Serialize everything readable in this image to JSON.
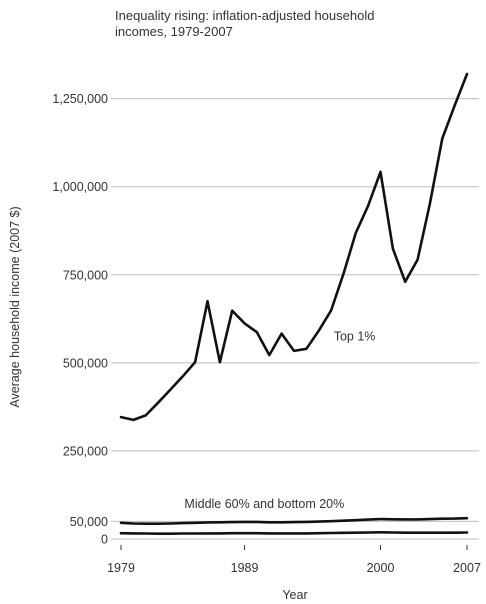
{
  "chart_data": {
    "type": "line",
    "title": "Inequality rising: inflation-adjusted household incomes, 1979-2007",
    "title_lines": [
      "Inequality rising: inflation-adjusted household",
      "incomes, 1979-2007"
    ],
    "xlabel": "Year",
    "ylabel": "Average household income (2007 $)",
    "xlim": [
      1979,
      2007
    ],
    "ylim": [
      0,
      1320000
    ],
    "grid": true,
    "x_ticks": [
      1979,
      1989,
      2000,
      2007
    ],
    "x_tick_labels": [
      "1979",
      "1989",
      "2000",
      "2007"
    ],
    "y_ticks": [
      0,
      50000,
      250000,
      500000,
      750000,
      1000000,
      1250000
    ],
    "y_tick_labels": [
      "0",
      "50,000",
      "250,000",
      "500,000",
      "750,000",
      "1,000,000",
      "1,250,000"
    ],
    "x": [
      1979,
      1980,
      1981,
      1982,
      1983,
      1984,
      1985,
      1986,
      1987,
      1988,
      1989,
      1990,
      1991,
      1992,
      1993,
      1994,
      1995,
      1996,
      1997,
      1998,
      1999,
      2000,
      2001,
      2002,
      2003,
      2004,
      2005,
      2006,
      2007
    ],
    "series": [
      {
        "name": "Top 1%",
        "values": [
          346000,
          338000,
          351000,
          387000,
          424000,
          462000,
          502000,
          675000,
          502000,
          648000,
          612000,
          587000,
          522000,
          583000,
          534000,
          540000,
          591000,
          649000,
          752000,
          869000,
          946000,
          1042000,
          824000,
          730000,
          793000,
          952000,
          1137000,
          1230000,
          1320000
        ]
      },
      {
        "name": "Middle 60%",
        "values": [
          46000,
          44000,
          43500,
          43500,
          44000,
          45000,
          46000,
          47000,
          47500,
          48000,
          48500,
          48500,
          47500,
          47500,
          48000,
          48500,
          49500,
          50500,
          52000,
          53500,
          55000,
          56500,
          56000,
          55500,
          55500,
          56500,
          57500,
          58000,
          59000
        ]
      },
      {
        "name": "Bottom 20%",
        "values": [
          16500,
          16000,
          15500,
          15000,
          15000,
          15500,
          15500,
          16000,
          16000,
          16500,
          16500,
          16500,
          16000,
          16000,
          16000,
          16000,
          16500,
          17000,
          17500,
          18000,
          18500,
          19000,
          18500,
          18000,
          18000,
          18000,
          18000,
          18000,
          18500
        ]
      }
    ],
    "annotations": [
      {
        "text": "Top 1%",
        "x": 1997.9,
        "y": 575000
      },
      {
        "text": "Middle 60% and bottom 20%",
        "x": 1990.6,
        "y": 100000
      }
    ]
  }
}
